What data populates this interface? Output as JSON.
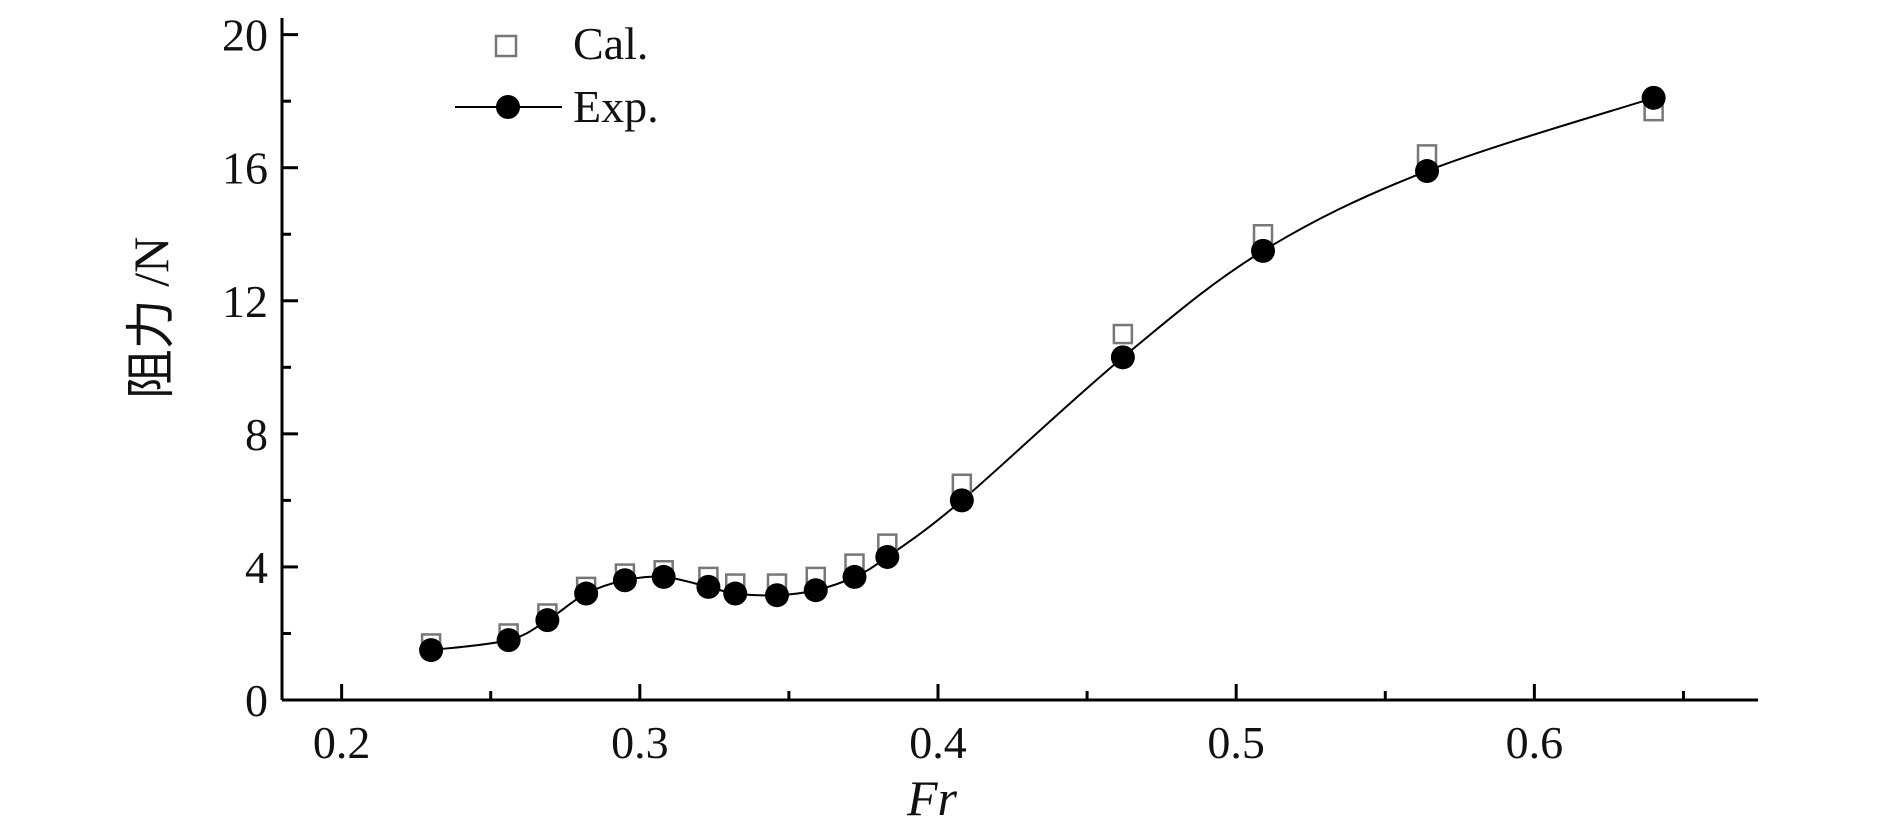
{
  "chart_data": {
    "type": "scatter",
    "xlabel": "Fr",
    "ylabel": "阻力 /N",
    "xlim": [
      0.18,
      0.675
    ],
    "ylim": [
      0,
      20.5
    ],
    "x_ticks": [
      0.2,
      0.3,
      0.4,
      0.5,
      0.6
    ],
    "x_tick_labels": [
      "0.2",
      "0.3",
      "0.4",
      "0.5",
      "0.6"
    ],
    "y_ticks": [
      0,
      4,
      8,
      12,
      16,
      20
    ],
    "y_tick_labels": [
      "0",
      "4",
      "8",
      "12",
      "16",
      "20"
    ],
    "grid": false,
    "legend_position": "top-left",
    "series": [
      {
        "name": "Cal.",
        "marker": "open-square",
        "color": "#777777",
        "line": false,
        "x": [
          0.23,
          0.256,
          0.269,
          0.282,
          0.295,
          0.308,
          0.323,
          0.332,
          0.346,
          0.359,
          0.372,
          0.383,
          0.408,
          0.462,
          0.509,
          0.564,
          0.64
        ],
        "y": [
          1.7,
          2.0,
          2.6,
          3.4,
          3.8,
          3.9,
          3.7,
          3.5,
          3.5,
          3.7,
          4.1,
          4.7,
          6.5,
          11.0,
          14.0,
          16.4,
          17.7
        ]
      },
      {
        "name": "Exp.",
        "marker": "filled-circle",
        "color": "#000000",
        "line": true,
        "x": [
          0.23,
          0.256,
          0.269,
          0.282,
          0.295,
          0.308,
          0.323,
          0.332,
          0.346,
          0.359,
          0.372,
          0.383,
          0.408,
          0.462,
          0.509,
          0.564,
          0.64
        ],
        "y": [
          1.5,
          1.8,
          2.4,
          3.2,
          3.6,
          3.7,
          3.4,
          3.2,
          3.15,
          3.3,
          3.7,
          4.3,
          6.0,
          10.3,
          13.5,
          15.9,
          18.1
        ]
      }
    ]
  }
}
